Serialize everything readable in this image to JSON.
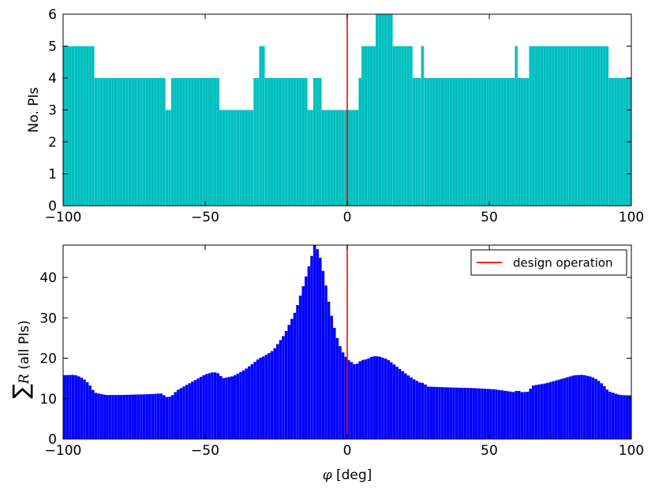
{
  "chart_data": [
    {
      "type": "bar",
      "ylabel": "No. PIs",
      "xlim": [
        -100,
        100
      ],
      "ylim": [
        0,
        6
      ],
      "xticks": [
        "−100",
        "−50",
        "0",
        "50",
        "100"
      ],
      "yticks": [
        "0",
        "1",
        "2",
        "3",
        "4",
        "5",
        "6"
      ],
      "bar_color": "#00bfbf",
      "reference_line": {
        "x": 0,
        "color": "#ff0000"
      },
      "segments": [
        {
          "x": [
            -100,
            -89
          ],
          "value": 5
        },
        {
          "x": [
            -89,
            -64
          ],
          "value": 4
        },
        {
          "x": [
            -64,
            -62
          ],
          "value": 3
        },
        {
          "x": [
            -62,
            -45
          ],
          "value": 4
        },
        {
          "x": [
            -45,
            -33
          ],
          "value": 3
        },
        {
          "x": [
            -33,
            -31
          ],
          "value": 4
        },
        {
          "x": [
            -31,
            -29
          ],
          "value": 5
        },
        {
          "x": [
            -29,
            -14
          ],
          "value": 4
        },
        {
          "x": [
            -14,
            -12
          ],
          "value": 3
        },
        {
          "x": [
            -12,
            -9
          ],
          "value": 4
        },
        {
          "x": [
            -9,
            4
          ],
          "value": 3
        },
        {
          "x": [
            4,
            5
          ],
          "value": 4
        },
        {
          "x": [
            5,
            10
          ],
          "value": 5
        },
        {
          "x": [
            10,
            16
          ],
          "value": 6
        },
        {
          "x": [
            16,
            23
          ],
          "value": 5
        },
        {
          "x": [
            23,
            26
          ],
          "value": 4
        },
        {
          "x": [
            26,
            27
          ],
          "value": 5
        },
        {
          "x": [
            27,
            59
          ],
          "value": 4
        },
        {
          "x": [
            59,
            60
          ],
          "value": 5
        },
        {
          "x": [
            60,
            64
          ],
          "value": 4
        },
        {
          "x": [
            64,
            92
          ],
          "value": 5
        },
        {
          "x": [
            92,
            100
          ],
          "value": 4
        }
      ]
    },
    {
      "type": "bar",
      "xlabel": "φ [deg]",
      "ylabel": "∑R (all PIs)",
      "xlim": [
        -100,
        100
      ],
      "ylim": [
        0,
        48
      ],
      "xticks": [
        "−100",
        "−50",
        "0",
        "50",
        "100"
      ],
      "yticks": [
        "0",
        "10",
        "20",
        "30",
        "40"
      ],
      "bar_color": "#0000ff",
      "reference_line": {
        "x": 0,
        "color": "#ff0000"
      },
      "legend": {
        "position": "upper-right",
        "entries": [
          {
            "label": "design operation",
            "color": "#ff0000"
          }
        ]
      },
      "curve": [
        [
          -100,
          15.8
        ],
        [
          -96,
          15.9
        ],
        [
          -94,
          15.4
        ],
        [
          -92,
          14.5
        ],
        [
          -90,
          12.8
        ],
        [
          -89,
          11.5
        ],
        [
          -85,
          10.9
        ],
        [
          -80,
          10.9
        ],
        [
          -75,
          11.0
        ],
        [
          -70,
          11.1
        ],
        [
          -65,
          11.3
        ],
        [
          -64,
          10.4
        ],
        [
          -62,
          10.5
        ],
        [
          -60,
          12.0
        ],
        [
          -55,
          14.0
        ],
        [
          -50,
          16.0
        ],
        [
          -47,
          16.6
        ],
        [
          -45,
          16.2
        ],
        [
          -44,
          15.0
        ],
        [
          -40,
          15.6
        ],
        [
          -36,
          17.2
        ],
        [
          -33,
          18.8
        ],
        [
          -31,
          20.0
        ],
        [
          -29,
          20.6
        ],
        [
          -26,
          22.0
        ],
        [
          -22,
          26.0
        ],
        [
          -18,
          32.0
        ],
        [
          -15,
          39.0
        ],
        [
          -13,
          44.0
        ],
        [
          -11.5,
          48.0
        ],
        [
          -10,
          46.5
        ],
        [
          -8,
          40.0
        ],
        [
          -6,
          32.0
        ],
        [
          -4,
          26.0
        ],
        [
          -2,
          22.0
        ],
        [
          0,
          19.8
        ],
        [
          2,
          18.8
        ],
        [
          3,
          18.3
        ],
        [
          4,
          19.0
        ],
        [
          5,
          19.5
        ],
        [
          7,
          19.8
        ],
        [
          9,
          20.5
        ],
        [
          11,
          20.5
        ],
        [
          14,
          19.8
        ],
        [
          17,
          18.2
        ],
        [
          20,
          16.5
        ],
        [
          23,
          15.0
        ],
        [
          26,
          13.8
        ],
        [
          27,
          14.0
        ],
        [
          28,
          13.0
        ],
        [
          35,
          12.8
        ],
        [
          45,
          12.6
        ],
        [
          52,
          12.3
        ],
        [
          57,
          11.8
        ],
        [
          59,
          11.6
        ],
        [
          60,
          12.2
        ],
        [
          61,
          11.6
        ],
        [
          64,
          11.7
        ],
        [
          65,
          13.2
        ],
        [
          70,
          13.8
        ],
        [
          75,
          14.8
        ],
        [
          80,
          15.8
        ],
        [
          83,
          15.9
        ],
        [
          86,
          15.4
        ],
        [
          88,
          14.7
        ],
        [
          90,
          13.5
        ],
        [
          92,
          11.8
        ],
        [
          96,
          10.9
        ],
        [
          100,
          10.8
        ]
      ]
    }
  ]
}
